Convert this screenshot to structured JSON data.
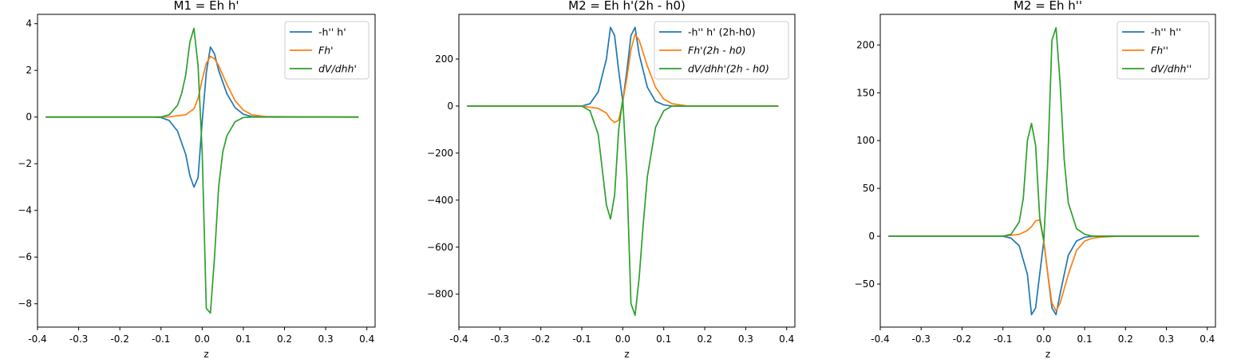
{
  "colors": {
    "series_blue": "#1f77b4",
    "series_orange": "#ff7f0e",
    "series_green": "#2ca02c"
  },
  "chart_data": [
    {
      "type": "line",
      "title": "M1 = Eh h'",
      "xlabel": "z",
      "ylabel": "",
      "xlim": [
        -0.4,
        0.42
      ],
      "ylim": [
        -9.0,
        4.4
      ],
      "xticks": [
        -0.4,
        -0.3,
        -0.2,
        -0.1,
        0.0,
        0.1,
        0.2,
        0.3,
        0.4
      ],
      "xtick_labels": [
        "-0.4",
        "-0.3",
        "-0.2",
        "-0.1",
        "0.0",
        "0.1",
        "0.2",
        "0.3",
        "0.4"
      ],
      "yticks": [
        -8,
        -6,
        -4,
        -2,
        0,
        2,
        4
      ],
      "ytick_labels": [
        "−8",
        "−6",
        "−4",
        "−2",
        "0",
        "2",
        "4"
      ],
      "legend_position": "top-right",
      "series": [
        {
          "name": "-h'' h'",
          "italic": false,
          "color": "#1f77b4",
          "x": [
            -0.38,
            -0.12,
            -0.1,
            -0.08,
            -0.06,
            -0.04,
            -0.03,
            -0.02,
            -0.01,
            0.0,
            0.01,
            0.02,
            0.03,
            0.04,
            0.06,
            0.08,
            0.1,
            0.12,
            0.38
          ],
          "y": [
            0,
            0,
            -0.02,
            -0.15,
            -0.6,
            -1.6,
            -2.5,
            -3.0,
            -2.6,
            -0.2,
            1.9,
            3.0,
            2.7,
            2.0,
            1.0,
            0.4,
            0.12,
            0.02,
            0
          ]
        },
        {
          "name": "Fh'",
          "italic": true,
          "color": "#ff7f0e",
          "x": [
            -0.38,
            -0.12,
            -0.08,
            -0.04,
            -0.02,
            -0.01,
            0.0,
            0.01,
            0.02,
            0.03,
            0.04,
            0.06,
            0.08,
            0.1,
            0.12,
            0.16,
            0.38
          ],
          "y": [
            0,
            0,
            0.01,
            0.1,
            0.35,
            0.8,
            1.6,
            2.3,
            2.6,
            2.5,
            2.2,
            1.4,
            0.7,
            0.3,
            0.1,
            0.01,
            0
          ]
        },
        {
          "name": "dV/dhh'",
          "italic": true,
          "color": "#2ca02c",
          "x": [
            -0.38,
            -0.1,
            -0.08,
            -0.06,
            -0.05,
            -0.04,
            -0.03,
            -0.02,
            -0.01,
            0.0,
            0.01,
            0.02,
            0.03,
            0.04,
            0.05,
            0.06,
            0.08,
            0.1,
            0.12,
            0.38
          ],
          "y": [
            0,
            0,
            0.1,
            0.5,
            1.0,
            1.8,
            3.2,
            3.8,
            2.2,
            -1.5,
            -8.2,
            -8.4,
            -6.0,
            -3.0,
            -1.5,
            -0.8,
            -0.2,
            -0.02,
            0,
            0
          ]
        }
      ]
    },
    {
      "type": "line",
      "title": "M2 = Eh h'(2h - h0)",
      "xlabel": "z",
      "ylabel": "",
      "xlim": [
        -0.4,
        0.42
      ],
      "ylim": [
        -940,
        390
      ],
      "xticks": [
        -0.4,
        -0.3,
        -0.2,
        -0.1,
        0.0,
        0.1,
        0.2,
        0.3,
        0.4
      ],
      "xtick_labels": [
        "-0.4",
        "-0.3",
        "-0.2",
        "-0.1",
        "0.0",
        "0.1",
        "0.2",
        "0.3",
        "0.4"
      ],
      "yticks": [
        -800,
        -600,
        -400,
        -200,
        0,
        200
      ],
      "ytick_labels": [
        "−800",
        "−600",
        "−400",
        "−200",
        "0",
        "200"
      ],
      "legend_position": "top-right",
      "series": [
        {
          "name": "-h'' h' (2h-h0)",
          "italic": false,
          "color": "#1f77b4",
          "x": [
            -0.38,
            -0.1,
            -0.08,
            -0.06,
            -0.04,
            -0.03,
            -0.02,
            -0.01,
            0.0,
            0.01,
            0.02,
            0.03,
            0.04,
            0.06,
            0.08,
            0.1,
            0.12,
            0.38
          ],
          "y": [
            0,
            0,
            10,
            60,
            200,
            335,
            300,
            150,
            20,
            150,
            300,
            335,
            220,
            80,
            20,
            5,
            0,
            0
          ]
        },
        {
          "name": "Fh'(2h - h0)",
          "italic": true,
          "color": "#ff7f0e",
          "x": [
            -0.38,
            -0.1,
            -0.06,
            -0.04,
            -0.03,
            -0.02,
            -0.01,
            0.0,
            0.01,
            0.02,
            0.03,
            0.04,
            0.06,
            0.08,
            0.1,
            0.12,
            0.16,
            0.38
          ],
          "y": [
            0,
            0,
            -10,
            -30,
            -55,
            -70,
            -60,
            20,
            120,
            240,
            305,
            280,
            170,
            80,
            30,
            10,
            0,
            0
          ]
        },
        {
          "name": "dV/dhh'(2h - h0)",
          "italic": true,
          "color": "#2ca02c",
          "x": [
            -0.38,
            -0.1,
            -0.08,
            -0.06,
            -0.04,
            -0.03,
            -0.02,
            -0.01,
            0.0,
            0.01,
            0.02,
            0.03,
            0.04,
            0.05,
            0.06,
            0.08,
            0.1,
            0.12,
            0.38
          ],
          "y": [
            0,
            0,
            -20,
            -120,
            -420,
            -480,
            -380,
            -100,
            30,
            -300,
            -840,
            -890,
            -730,
            -500,
            -300,
            -90,
            -20,
            0,
            0
          ]
        }
      ]
    },
    {
      "type": "line",
      "title": "M2 = Eh h''",
      "xlabel": "z",
      "ylabel": "",
      "xlim": [
        -0.4,
        0.42
      ],
      "ylim": [
        -95,
        232
      ],
      "xticks": [
        -0.4,
        -0.3,
        -0.2,
        -0.1,
        0.0,
        0.1,
        0.2,
        0.3,
        0.4
      ],
      "xtick_labels": [
        "-0.4",
        "-0.3",
        "-0.2",
        "-0.1",
        "0.0",
        "0.1",
        "0.2",
        "0.3",
        "0.4"
      ],
      "yticks": [
        -50,
        0,
        50,
        100,
        150,
        200
      ],
      "ytick_labels": [
        "−50",
        "0",
        "50",
        "100",
        "150",
        "200"
      ],
      "legend_position": "top-right",
      "series": [
        {
          "name": "-h'' h''",
          "italic": false,
          "color": "#1f77b4",
          "x": [
            -0.38,
            -0.1,
            -0.08,
            -0.06,
            -0.04,
            -0.03,
            -0.02,
            -0.01,
            0.0,
            0.01,
            0.02,
            0.03,
            0.04,
            0.06,
            0.08,
            0.1,
            0.12,
            0.38
          ],
          "y": [
            0,
            0,
            -2,
            -10,
            -40,
            -82,
            -75,
            -40,
            -5,
            -40,
            -75,
            -82,
            -60,
            -20,
            -5,
            -1,
            0,
            0
          ]
        },
        {
          "name": "Fh''",
          "italic": true,
          "color": "#ff7f0e",
          "x": [
            -0.38,
            -0.1,
            -0.06,
            -0.04,
            -0.03,
            -0.02,
            -0.01,
            0.0,
            0.01,
            0.02,
            0.03,
            0.04,
            0.06,
            0.08,
            0.1,
            0.12,
            0.14,
            0.18,
            0.38
          ],
          "y": [
            0,
            0,
            2,
            6,
            10,
            16,
            17,
            -5,
            -40,
            -70,
            -78,
            -70,
            -40,
            -15,
            -5,
            -2,
            -1,
            0,
            0
          ]
        },
        {
          "name": "dV/dhh''",
          "italic": true,
          "color": "#2ca02c",
          "x": [
            -0.38,
            -0.1,
            -0.08,
            -0.06,
            -0.05,
            -0.04,
            -0.03,
            -0.02,
            -0.01,
            0.0,
            0.01,
            0.02,
            0.03,
            0.04,
            0.05,
            0.06,
            0.08,
            0.1,
            0.12,
            0.38
          ],
          "y": [
            0,
            0,
            2,
            15,
            40,
            100,
            118,
            95,
            20,
            -5,
            80,
            205,
            218,
            160,
            80,
            35,
            8,
            2,
            0,
            0
          ]
        }
      ]
    }
  ]
}
